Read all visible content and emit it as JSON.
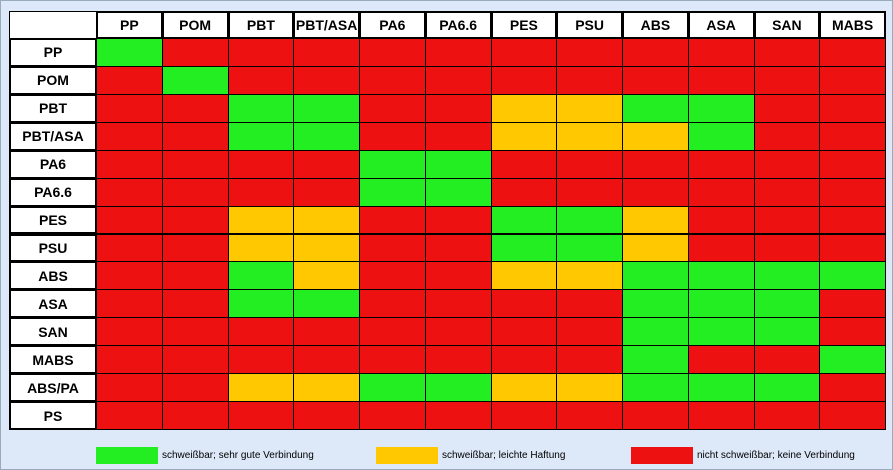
{
  "table": {
    "columns": [
      "PP",
      "POM",
      "PBT",
      "PBT/ASA",
      "PA6",
      "PA6.6",
      "PES",
      "PSU",
      "ABS",
      "ASA",
      "SAN",
      "MABS"
    ],
    "rows": [
      {
        "label": "PP",
        "cells": [
          "#22ee22",
          "#ee1111",
          "#ee1111",
          "#ee1111",
          "#ee1111",
          "#ee1111",
          "#ee1111",
          "#ee1111",
          "#ee1111",
          "#ee1111",
          "#ee1111",
          "#ee1111"
        ]
      },
      {
        "label": "POM",
        "cells": [
          "#ee1111",
          "#22ee22",
          "#ee1111",
          "#ee1111",
          "#ee1111",
          "#ee1111",
          "#ee1111",
          "#ee1111",
          "#ee1111",
          "#ee1111",
          "#ee1111",
          "#ee1111"
        ]
      },
      {
        "label": "PBT",
        "cells": [
          "#ee1111",
          "#ee1111",
          "#22ee22",
          "#22ee22",
          "#ee1111",
          "#ee1111",
          "#ffc800",
          "#ffc800",
          "#22ee22",
          "#22ee22",
          "#ee1111",
          "#ee1111"
        ]
      },
      {
        "label": "PBT/ASA",
        "cells": [
          "#ee1111",
          "#ee1111",
          "#22ee22",
          "#22ee22",
          "#ee1111",
          "#ee1111",
          "#ffc800",
          "#ffc800",
          "#ffc800",
          "#22ee22",
          "#ee1111",
          "#ee1111"
        ]
      },
      {
        "label": "PA6",
        "cells": [
          "#ee1111",
          "#ee1111",
          "#ee1111",
          "#ee1111",
          "#22ee22",
          "#22ee22",
          "#ee1111",
          "#ee1111",
          "#ee1111",
          "#ee1111",
          "#ee1111",
          "#ee1111"
        ]
      },
      {
        "label": "PA6.6",
        "cells": [
          "#ee1111",
          "#ee1111",
          "#ee1111",
          "#ee1111",
          "#22ee22",
          "#22ee22",
          "#ee1111",
          "#ee1111",
          "#ee1111",
          "#ee1111",
          "#ee1111",
          "#ee1111"
        ]
      },
      {
        "label": "PES",
        "cells": [
          "#ee1111",
          "#ee1111",
          "#ffc800",
          "#ffc800",
          "#ee1111",
          "#ee1111",
          "#22ee22",
          "#22ee22",
          "#ffc800",
          "#ee1111",
          "#ee1111",
          "#ee1111"
        ]
      },
      {
        "label": "PSU",
        "cells": [
          "#ee1111",
          "#ee1111",
          "#ffc800",
          "#ffc800",
          "#ee1111",
          "#ee1111",
          "#22ee22",
          "#22ee22",
          "#ffc800",
          "#ee1111",
          "#ee1111",
          "#ee1111"
        ]
      },
      {
        "label": "ABS",
        "cells": [
          "#ee1111",
          "#ee1111",
          "#22ee22",
          "#ffc800",
          "#ee1111",
          "#ee1111",
          "#ffc800",
          "#ffc800",
          "#22ee22",
          "#22ee22",
          "#22ee22",
          "#22ee22"
        ]
      },
      {
        "label": "ASA",
        "cells": [
          "#ee1111",
          "#ee1111",
          "#22ee22",
          "#22ee22",
          "#ee1111",
          "#ee1111",
          "#ee1111",
          "#ee1111",
          "#22ee22",
          "#22ee22",
          "#22ee22",
          "#ee1111"
        ]
      },
      {
        "label": "SAN",
        "cells": [
          "#ee1111",
          "#ee1111",
          "#ee1111",
          "#ee1111",
          "#ee1111",
          "#ee1111",
          "#ee1111",
          "#ee1111",
          "#22ee22",
          "#22ee22",
          "#22ee22",
          "#ee1111"
        ]
      },
      {
        "label": "MABS",
        "cells": [
          "#ee1111",
          "#ee1111",
          "#ee1111",
          "#ee1111",
          "#ee1111",
          "#ee1111",
          "#ee1111",
          "#ee1111",
          "#22ee22",
          "#ee1111",
          "#ee1111",
          "#22ee22"
        ]
      },
      {
        "label": "ABS/PA",
        "cells": [
          "#ee1111",
          "#ee1111",
          "#ffc800",
          "#ffc800",
          "#22ee22",
          "#22ee22",
          "#ffc800",
          "#ffc800",
          "#22ee22",
          "#22ee22",
          "#22ee22",
          "#ee1111"
        ]
      },
      {
        "label": "PS",
        "cells": [
          "#ee1111",
          "#ee1111",
          "#ee1111",
          "#ee1111",
          "#ee1111",
          "#ee1111",
          "#ee1111",
          "#ee1111",
          "#ee1111",
          "#ee1111",
          "#ee1111",
          "#ee1111"
        ]
      }
    ]
  },
  "legend": [
    {
      "color": "#22ee22",
      "label": "schweißbar; sehr gute Verbindung"
    },
    {
      "color": "#ffc800",
      "label": "schweißbar; leichte Haftung"
    },
    {
      "color": "#ee1111",
      "label": "nicht schweißbar; keine Verbindung"
    }
  ]
}
